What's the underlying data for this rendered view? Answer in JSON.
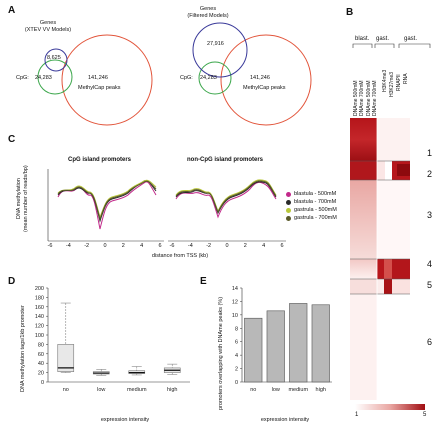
{
  "panelA": {
    "label": "A",
    "left": {
      "genes_title": [
        "Genes",
        "(XTEV VV Models)"
      ],
      "genes_count": "8,625",
      "cpg_label": "CpG:",
      "cpg_count": "24,283",
      "methyl_count": "141,246",
      "methyl_label": "MethylCap peaks"
    },
    "right": {
      "genes_title": [
        "Genes",
        "(Filtered Models)"
      ],
      "genes_count": "27,916",
      "cpg_label": "CpG:",
      "cpg_count": "24,283",
      "methyl_count": "141,246",
      "methyl_label": "MethylCap peaks"
    },
    "colors": {
      "genes": "#3a3a9a",
      "cpg": "#3aa64a",
      "methyl": "#e2553b"
    }
  },
  "panelB": {
    "label": "B",
    "group_blast": "blast.",
    "group_gast1": "gast.",
    "group_gast2": "gast.",
    "columns": [
      "DNAme 500mM",
      "DNAme 700mM",
      "DNAme 500mM",
      "DNAme 700mM",
      "H3K4me3",
      "H3K27me3",
      "RNAPII",
      "RNA"
    ],
    "clusters": [
      "1",
      "2",
      "3",
      "4",
      "5",
      "6"
    ],
    "scale_min": "1",
    "scale_max": "5",
    "colors": {
      "high": "#a10d12",
      "low": "#ffffff"
    }
  },
  "panelC": {
    "label": "C",
    "left_title": "CpG island promoters",
    "right_title": "non-CpG island promoters",
    "ylabel": [
      "DNA methylation",
      "(mean number of reads/bp)"
    ],
    "xlabel": "distance from TSS (kb)",
    "x_ticks": [
      "-6",
      "-4",
      "-2",
      "0",
      "2",
      "4",
      "6"
    ],
    "legend": [
      {
        "label": "blastula - 500mM",
        "color": "#c2298a"
      },
      {
        "label": "blastula - 700mM",
        "color": "#2a2a2a"
      },
      {
        "label": "gastrula - 500mM",
        "color": "#b9c83a"
      },
      {
        "label": "gastrula - 700mM",
        "color": "#5a5a2a"
      }
    ]
  },
  "chart_data": [
    {
      "type": "box",
      "panel": "D",
      "categories": [
        "no",
        "low",
        "medium",
        "high"
      ],
      "ylabel": "DNA methylation tags/1kb promoter",
      "xlabel": "expression intensity",
      "ylim": [
        0,
        200
      ],
      "yticks": [
        0,
        20,
        40,
        60,
        80,
        100,
        120,
        140,
        160,
        180,
        200
      ],
      "boxes": [
        {
          "whisker_low": 20,
          "q1": 22,
          "median": 30,
          "q3": 80,
          "whisker_high": 168
        },
        {
          "whisker_low": 14,
          "q1": 17,
          "median": 19,
          "q3": 22,
          "whisker_high": 27
        },
        {
          "whisker_low": 15,
          "q1": 18,
          "median": 20,
          "q3": 24,
          "whisker_high": 33
        },
        {
          "whisker_low": 16,
          "q1": 20,
          "median": 25,
          "q3": 30,
          "whisker_high": 38
        }
      ]
    },
    {
      "type": "bar",
      "panel": "E",
      "categories": [
        "no",
        "low",
        "medium",
        "high"
      ],
      "values": [
        9.5,
        10.6,
        11.7,
        11.5
      ],
      "ylabel": "promoters overlapping with DNAme peaks (%)",
      "xlabel": "expression intensity",
      "ylim": [
        0,
        14
      ],
      "yticks": [
        0,
        2,
        4,
        6,
        8,
        10,
        12,
        14
      ]
    }
  ],
  "panelD": {
    "label": "D"
  },
  "panelE": {
    "label": "E"
  }
}
